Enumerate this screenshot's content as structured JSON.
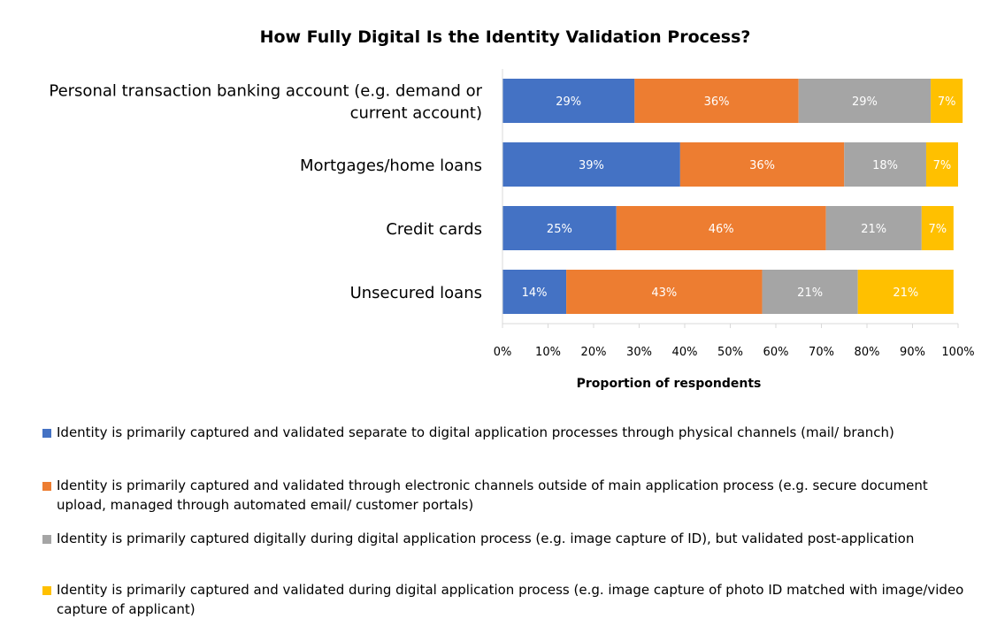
{
  "chart_data": {
    "type": "bar",
    "orientation": "horizontal",
    "stacked": true,
    "title": "How Fully Digital Is the Identity Validation Process?",
    "xlabel": "Proportion of respondents",
    "ylabel": "",
    "xlim": [
      0,
      100
    ],
    "x_ticks": [
      "0%",
      "10%",
      "20%",
      "30%",
      "40%",
      "50%",
      "60%",
      "70%",
      "80%",
      "90%",
      "100%"
    ],
    "grid": false,
    "legend_position": "bottom",
    "categories": [
      "Personal transaction banking account (e.g. demand or current account)",
      "Mortgages/home loans",
      "Credit cards",
      "Unsecured loans"
    ],
    "category_label_lines": [
      [
        "Personal transaction banking account (e.g. demand or",
        "current account)"
      ],
      [
        "Mortgages/home loans"
      ],
      [
        "Credit cards"
      ],
      [
        "Unsecured loans"
      ]
    ],
    "series": [
      {
        "name": "Identity is primarily captured and validated separate to digital application processes through physical channels (mail/ branch)",
        "color": "#4472C4",
        "values": [
          29,
          39,
          25,
          14
        ],
        "labels": [
          "29%",
          "39%",
          "25%",
          "14%"
        ]
      },
      {
        "name": "Identity is primarily captured and validated through electronic channels outside of main application process (e.g. secure document upload, managed through automated email/ customer portals)",
        "color": "#ED7D31",
        "values": [
          36,
          36,
          46,
          43
        ],
        "labels": [
          "36%",
          "36%",
          "46%",
          "43%"
        ]
      },
      {
        "name": "Identity is primarily captured digitally during digital application process (e.g. image capture of ID), but validated post-application",
        "color": "#A5A5A5",
        "values": [
          29,
          18,
          21,
          21
        ],
        "labels": [
          "29%",
          "18%",
          "21%",
          "21%"
        ]
      },
      {
        "name": "Identity is primarily captured and validated during digital application process (e.g. image capture of photo ID matched with image/video capture of applicant)",
        "color": "#FFC000",
        "values": [
          7,
          7,
          7,
          21
        ],
        "labels": [
          "7%",
          "7%",
          "7%",
          "21%"
        ]
      }
    ]
  }
}
